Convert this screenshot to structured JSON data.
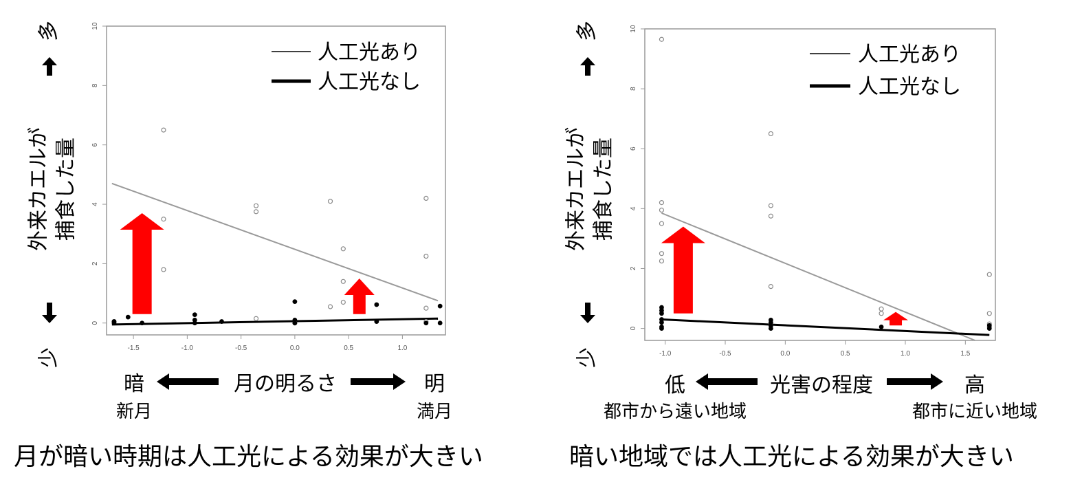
{
  "chart_data": [
    {
      "type": "scatter",
      "ylabel_line1": "外来カエルが",
      "ylabel_line2": "捕食した量",
      "y_top_label": "多",
      "y_bottom_label": "少",
      "x_axis_label": "月の明るさ",
      "x_left_label": "暗",
      "x_left_sub": "新月",
      "x_right_label": "明",
      "x_right_sub": "満月",
      "caption": "月が暗い時期は人工光による効果が大きい",
      "legend": [
        {
          "label": "人工光あり",
          "style": "thin-gray"
        },
        {
          "label": "人工光なし",
          "style": "thick-black"
        }
      ],
      "xlim": [
        -1.75,
        1.4
      ],
      "ylim": [
        -0.4,
        10
      ],
      "xticks": [
        "-1.5",
        "-1.0",
        "-0.5",
        "0.0",
        "0.5",
        "1.0"
      ],
      "xtick_values": [
        -1.5,
        -1.0,
        -0.5,
        0.0,
        0.5,
        1.0
      ],
      "yticks": [
        "0",
        "2",
        "4",
        "6",
        "8",
        "10"
      ],
      "ytick_values": [
        0,
        2,
        4,
        6,
        8,
        10
      ],
      "series": [
        {
          "name": "人工光あり",
          "marker": "open-circle",
          "points": [
            [
              -1.22,
              6.5
            ],
            [
              -1.22,
              3.5
            ],
            [
              -1.22,
              1.8
            ],
            [
              -0.36,
              3.95
            ],
            [
              -0.36,
              3.75
            ],
            [
              -0.36,
              0.15
            ],
            [
              0.33,
              4.1
            ],
            [
              0.33,
              0.55
            ],
            [
              0.45,
              2.5
            ],
            [
              0.45,
              1.4
            ],
            [
              0.45,
              0.7
            ],
            [
              1.22,
              4.2
            ],
            [
              1.22,
              2.25
            ],
            [
              1.22,
              0.5
            ],
            [
              1.22,
              0.05
            ],
            [
              0.0,
              0.0
            ],
            [
              -1.68,
              0.05
            ]
          ],
          "fit": [
            [
              -1.7,
              4.7
            ],
            [
              1.33,
              0.75
            ]
          ]
        },
        {
          "name": "人工光なし",
          "marker": "filled-circle",
          "points": [
            [
              -1.68,
              0.05
            ],
            [
              -1.68,
              0.0
            ],
            [
              -1.55,
              0.2
            ],
            [
              -1.42,
              0.0
            ],
            [
              -0.93,
              0.28
            ],
            [
              -0.93,
              0.1
            ],
            [
              -0.93,
              0.0
            ],
            [
              -0.68,
              0.05
            ],
            [
              0.0,
              0.72
            ],
            [
              0.0,
              0.1
            ],
            [
              0.0,
              0.0
            ],
            [
              0.76,
              0.62
            ],
            [
              0.76,
              0.05
            ],
            [
              1.22,
              0.0
            ],
            [
              1.35,
              0.57
            ],
            [
              1.35,
              0.0
            ]
          ],
          "fit": [
            [
              -1.7,
              -0.05
            ],
            [
              1.33,
              0.15
            ]
          ]
        }
      ],
      "arrows": [
        {
          "x": -1.42,
          "y_from": 0.3,
          "y_to": 3.7,
          "color": "#ff0000"
        },
        {
          "x": 0.6,
          "y_from": 0.3,
          "y_to": 1.5,
          "color": "#ff0000"
        }
      ]
    },
    {
      "type": "scatter",
      "ylabel_line1": "外来カエルが",
      "ylabel_line2": "捕食した量",
      "y_top_label": "多",
      "y_bottom_label": "少",
      "x_axis_label": "光害の程度",
      "x_left_label": "低",
      "x_left_sub": "都市から遠い地域",
      "x_right_label": "高",
      "x_right_sub": "都市に近い地域",
      "caption": "暗い地域では人工光による効果が大きい",
      "legend": [
        {
          "label": "人工光あり",
          "style": "thin-gray"
        },
        {
          "label": "人工光なし",
          "style": "thick-black"
        }
      ],
      "xlim": [
        -1.17,
        1.75
      ],
      "ylim": [
        -0.4,
        10
      ],
      "xticks": [
        "-1.0",
        "-0.5",
        "0.0",
        "0.5",
        "1.0",
        "1.5"
      ],
      "xtick_values": [
        -1.0,
        -0.5,
        0.0,
        0.5,
        1.0,
        1.5
      ],
      "yticks": [
        "0",
        "2",
        "4",
        "6",
        "8",
        "10"
      ],
      "ytick_values": [
        0,
        2,
        4,
        6,
        8,
        10
      ],
      "series": [
        {
          "name": "人工光あり",
          "marker": "open-circle",
          "points": [
            [
              -1.03,
              9.65
            ],
            [
              -1.03,
              4.2
            ],
            [
              -1.03,
              3.95
            ],
            [
              -1.03,
              3.5
            ],
            [
              -1.03,
              2.5
            ],
            [
              -1.03,
              2.25
            ],
            [
              -0.12,
              6.5
            ],
            [
              -0.12,
              4.1
            ],
            [
              -0.12,
              3.75
            ],
            [
              -0.12,
              1.4
            ],
            [
              -0.12,
              0.1
            ],
            [
              0.8,
              0.65
            ],
            [
              0.8,
              0.5
            ],
            [
              1.7,
              1.8
            ],
            [
              1.7,
              0.5
            ],
            [
              1.7,
              0.15
            ],
            [
              1.7,
              0.05
            ]
          ],
          "fit": [
            [
              -1.03,
              3.85
            ],
            [
              1.58,
              -0.4
            ]
          ]
        },
        {
          "name": "人工光なし",
          "marker": "filled-circle",
          "points": [
            [
              -1.03,
              0.7
            ],
            [
              -1.03,
              0.6
            ],
            [
              -1.03,
              0.5
            ],
            [
              -1.03,
              0.3
            ],
            [
              -1.03,
              0.2
            ],
            [
              -1.03,
              0.05
            ],
            [
              -1.03,
              0.0
            ],
            [
              -0.12,
              0.28
            ],
            [
              -0.12,
              0.2
            ],
            [
              -0.12,
              0.1
            ],
            [
              -0.12,
              0.0
            ],
            [
              0.8,
              0.05
            ],
            [
              1.7,
              0.1
            ],
            [
              1.7,
              0.0
            ]
          ],
          "fit": [
            [
              -1.03,
              0.3
            ],
            [
              1.7,
              -0.22
            ]
          ]
        }
      ],
      "arrows": [
        {
          "x": -0.85,
          "y_from": 0.5,
          "y_to": 3.4,
          "color": "#ff0000"
        },
        {
          "x": 0.92,
          "y_from": 0.1,
          "y_to": 0.55,
          "color": "#ff0000"
        }
      ]
    }
  ]
}
